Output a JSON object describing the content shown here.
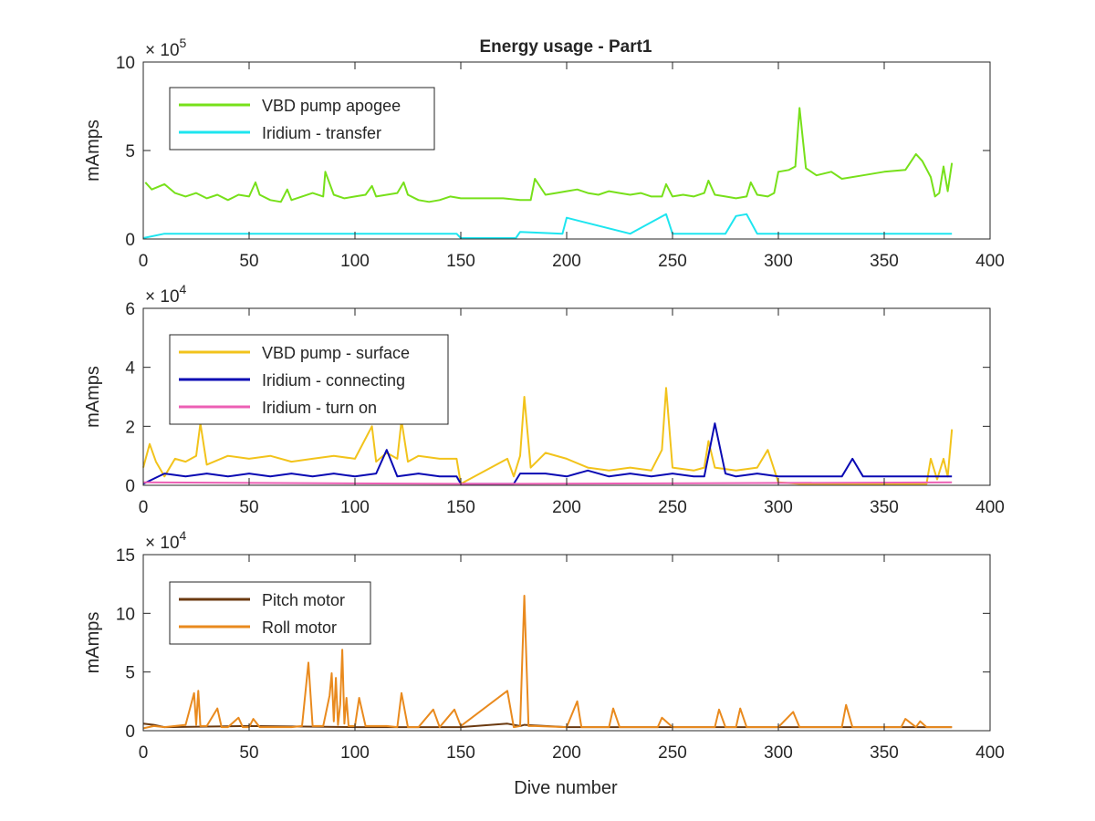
{
  "figure": {
    "title": "Energy usage - Part1",
    "xlabel": "Dive number"
  },
  "chart_data": [
    {
      "type": "line",
      "title": "Energy usage - Part1",
      "xlabel": "",
      "ylabel": "mAmps",
      "exponent_base": "× 10",
      "exponent": "5",
      "xlim": [
        0,
        400
      ],
      "ylim": [
        0,
        10
      ],
      "xticks": [
        "0",
        "50",
        "100",
        "150",
        "200",
        "250",
        "300",
        "350",
        "400"
      ],
      "yticks": [
        "0",
        "5",
        "10"
      ],
      "legend_position": "top-left",
      "series": [
        {
          "name": "VBD pump apogee",
          "color": "#77e01a",
          "x": [
            1,
            4,
            10,
            15,
            20,
            25,
            30,
            35,
            40,
            45,
            50,
            53,
            55,
            60,
            65,
            68,
            70,
            75,
            80,
            85,
            86,
            90,
            95,
            100,
            105,
            108,
            110,
            115,
            120,
            123,
            125,
            130,
            135,
            140,
            145,
            150,
            160,
            170,
            178,
            183,
            185,
            190,
            195,
            200,
            205,
            210,
            215,
            220,
            225,
            230,
            235,
            240,
            245,
            247,
            250,
            255,
            260,
            265,
            267,
            270,
            275,
            280,
            285,
            287,
            290,
            295,
            298,
            300,
            305,
            308,
            310,
            313,
            318,
            325,
            330,
            340,
            350,
            360,
            365,
            368,
            372,
            374,
            376,
            378,
            380,
            382
          ],
          "y": [
            3.2,
            2.8,
            3.1,
            2.6,
            2.4,
            2.6,
            2.3,
            2.5,
            2.2,
            2.5,
            2.4,
            3.2,
            2.5,
            2.2,
            2.1,
            2.8,
            2.2,
            2.4,
            2.6,
            2.4,
            3.8,
            2.5,
            2.3,
            2.4,
            2.5,
            3.0,
            2.4,
            2.5,
            2.6,
            3.2,
            2.5,
            2.2,
            2.1,
            2.2,
            2.4,
            2.3,
            2.3,
            2.3,
            2.2,
            2.2,
            3.4,
            2.5,
            2.6,
            2.7,
            2.8,
            2.6,
            2.5,
            2.7,
            2.6,
            2.5,
            2.6,
            2.4,
            2.4,
            3.1,
            2.4,
            2.5,
            2.4,
            2.6,
            3.3,
            2.5,
            2.4,
            2.3,
            2.4,
            3.2,
            2.5,
            2.4,
            2.6,
            3.8,
            3.9,
            4.1,
            7.4,
            4.0,
            3.6,
            3.8,
            3.4,
            3.6,
            3.8,
            3.9,
            4.8,
            4.4,
            3.5,
            2.4,
            2.6,
            4.1,
            2.7,
            4.3
          ]
        },
        {
          "name": "Iridium - transfer",
          "color": "#1ee5ef",
          "x": [
            0,
            10,
            148,
            150,
            176,
            178,
            198,
            200,
            230,
            247,
            250,
            275,
            280,
            285,
            290,
            382
          ],
          "y": [
            0.05,
            0.3,
            0.3,
            0.05,
            0.05,
            0.4,
            0.3,
            1.2,
            0.3,
            1.4,
            0.3,
            0.3,
            1.3,
            1.4,
            0.3,
            0.3
          ]
        }
      ]
    },
    {
      "type": "line",
      "title": "",
      "xlabel": "",
      "ylabel": "mAmps",
      "exponent_base": "× 10",
      "exponent": "4",
      "xlim": [
        0,
        400
      ],
      "ylim": [
        0,
        6
      ],
      "xticks": [
        "0",
        "50",
        "100",
        "150",
        "200",
        "250",
        "300",
        "350",
        "400"
      ],
      "yticks": [
        "0",
        "2",
        "4",
        "6"
      ],
      "legend_position": "top-left",
      "series": [
        {
          "name": "VBD pump - surface",
          "color": "#f2c31b",
          "x": [
            0,
            3,
            6,
            10,
            15,
            20,
            25,
            27,
            30,
            40,
            50,
            60,
            70,
            80,
            90,
            100,
            108,
            110,
            115,
            120,
            122,
            125,
            130,
            140,
            148,
            150,
            172,
            175,
            178,
            180,
            183,
            190,
            200,
            210,
            220,
            230,
            240,
            245,
            247,
            250,
            260,
            265,
            267,
            270,
            280,
            290,
            295,
            300,
            310,
            320,
            330,
            340,
            350,
            360,
            370,
            372,
            375,
            378,
            380,
            382
          ],
          "y": [
            0.6,
            1.4,
            0.8,
            0.3,
            0.9,
            0.8,
            1.0,
            2.1,
            0.7,
            1.0,
            0.9,
            1.0,
            0.8,
            0.9,
            1.0,
            0.9,
            2.0,
            0.8,
            1.1,
            0.9,
            2.2,
            0.8,
            1.0,
            0.9,
            0.9,
            0.05,
            0.9,
            0.3,
            1.0,
            3.0,
            0.6,
            1.1,
            0.9,
            0.6,
            0.5,
            0.6,
            0.5,
            1.2,
            3.3,
            0.6,
            0.5,
            0.6,
            1.5,
            0.6,
            0.5,
            0.6,
            1.2,
            0.1,
            0.05,
            0.05,
            0.05,
            0.05,
            0.05,
            0.05,
            0.05,
            0.9,
            0.2,
            0.9,
            0.3,
            1.9
          ]
        },
        {
          "name": "Iridium - connecting",
          "color": "#0a0ab3",
          "x": [
            0,
            10,
            20,
            30,
            40,
            50,
            60,
            70,
            80,
            90,
            100,
            110,
            115,
            120,
            130,
            140,
            148,
            150,
            175,
            178,
            190,
            200,
            210,
            220,
            230,
            240,
            250,
            260,
            265,
            270,
            275,
            280,
            290,
            300,
            310,
            320,
            330,
            335,
            340,
            350,
            360,
            370,
            380,
            382
          ],
          "y": [
            0.05,
            0.4,
            0.3,
            0.4,
            0.3,
            0.4,
            0.3,
            0.4,
            0.3,
            0.4,
            0.3,
            0.4,
            1.2,
            0.3,
            0.4,
            0.3,
            0.3,
            0.05,
            0.05,
            0.4,
            0.4,
            0.3,
            0.5,
            0.3,
            0.4,
            0.3,
            0.4,
            0.3,
            0.3,
            2.1,
            0.4,
            0.3,
            0.4,
            0.3,
            0.3,
            0.3,
            0.3,
            0.9,
            0.3,
            0.3,
            0.3,
            0.3,
            0.3,
            0.3
          ]
        },
        {
          "name": "Iridium - turn on",
          "color": "#ec5fb4",
          "x": [
            0,
            150,
            175,
            382
          ],
          "y": [
            0.1,
            0.05,
            0.05,
            0.1
          ]
        }
      ]
    },
    {
      "type": "line",
      "title": "",
      "xlabel": "Dive number",
      "ylabel": "mAmps",
      "exponent_base": "× 10",
      "exponent": "4",
      "xlim": [
        0,
        400
      ],
      "ylim": [
        0,
        15
      ],
      "xticks": [
        "0",
        "50",
        "100",
        "150",
        "200",
        "250",
        "300",
        "350",
        "400"
      ],
      "yticks": [
        "0",
        "5",
        "10",
        "15"
      ],
      "legend_position": "top-left",
      "series": [
        {
          "name": "Pitch motor",
          "color": "#6b3a10",
          "x": [
            0,
            5,
            10,
            50,
            100,
            150,
            172,
            178,
            180,
            200,
            250,
            300,
            350,
            382
          ],
          "y": [
            0.6,
            0.5,
            0.3,
            0.4,
            0.3,
            0.3,
            0.6,
            0.4,
            0.5,
            0.3,
            0.3,
            0.3,
            0.3,
            0.3
          ]
        },
        {
          "name": "Roll motor",
          "color": "#e98a1e",
          "x": [
            0,
            5,
            10,
            20,
            24,
            25,
            26,
            27,
            30,
            35,
            37,
            40,
            45,
            47,
            50,
            52,
            55,
            60,
            70,
            75,
            78,
            80,
            85,
            88,
            89,
            90,
            91,
            92,
            93,
            94,
            95,
            96,
            97,
            100,
            102,
            105,
            110,
            115,
            120,
            122,
            125,
            130,
            137,
            140,
            147,
            150,
            172,
            175,
            178,
            180,
            182,
            185,
            200,
            205,
            207,
            210,
            220,
            222,
            225,
            230,
            243,
            245,
            250,
            260,
            270,
            272,
            275,
            280,
            282,
            285,
            290,
            300,
            307,
            310,
            320,
            330,
            332,
            335,
            350,
            358,
            360,
            365,
            367,
            370,
            382
          ],
          "y": [
            0.2,
            0.4,
            0.3,
            0.5,
            3.2,
            0.5,
            3.4,
            0.4,
            0.4,
            1.9,
            0.3,
            0.3,
            1.1,
            0.3,
            0.3,
            1.0,
            0.3,
            0.3,
            0.3,
            0.4,
            5.8,
            0.4,
            0.4,
            3.0,
            4.9,
            0.8,
            4.5,
            0.5,
            2.2,
            6.9,
            0.6,
            2.8,
            0.4,
            0.4,
            2.8,
            0.4,
            0.4,
            0.4,
            0.3,
            3.2,
            0.3,
            0.3,
            1.8,
            0.3,
            1.8,
            0.4,
            3.4,
            0.3,
            0.4,
            11.5,
            0.4,
            0.4,
            0.3,
            2.5,
            0.3,
            0.3,
            0.3,
            1.9,
            0.3,
            0.3,
            0.3,
            1.1,
            0.3,
            0.3,
            0.3,
            1.8,
            0.3,
            0.3,
            1.9,
            0.3,
            0.3,
            0.3,
            1.6,
            0.3,
            0.3,
            0.3,
            2.2,
            0.3,
            0.3,
            0.3,
            1.0,
            0.3,
            0.8,
            0.3,
            0.3
          ]
        }
      ]
    }
  ]
}
